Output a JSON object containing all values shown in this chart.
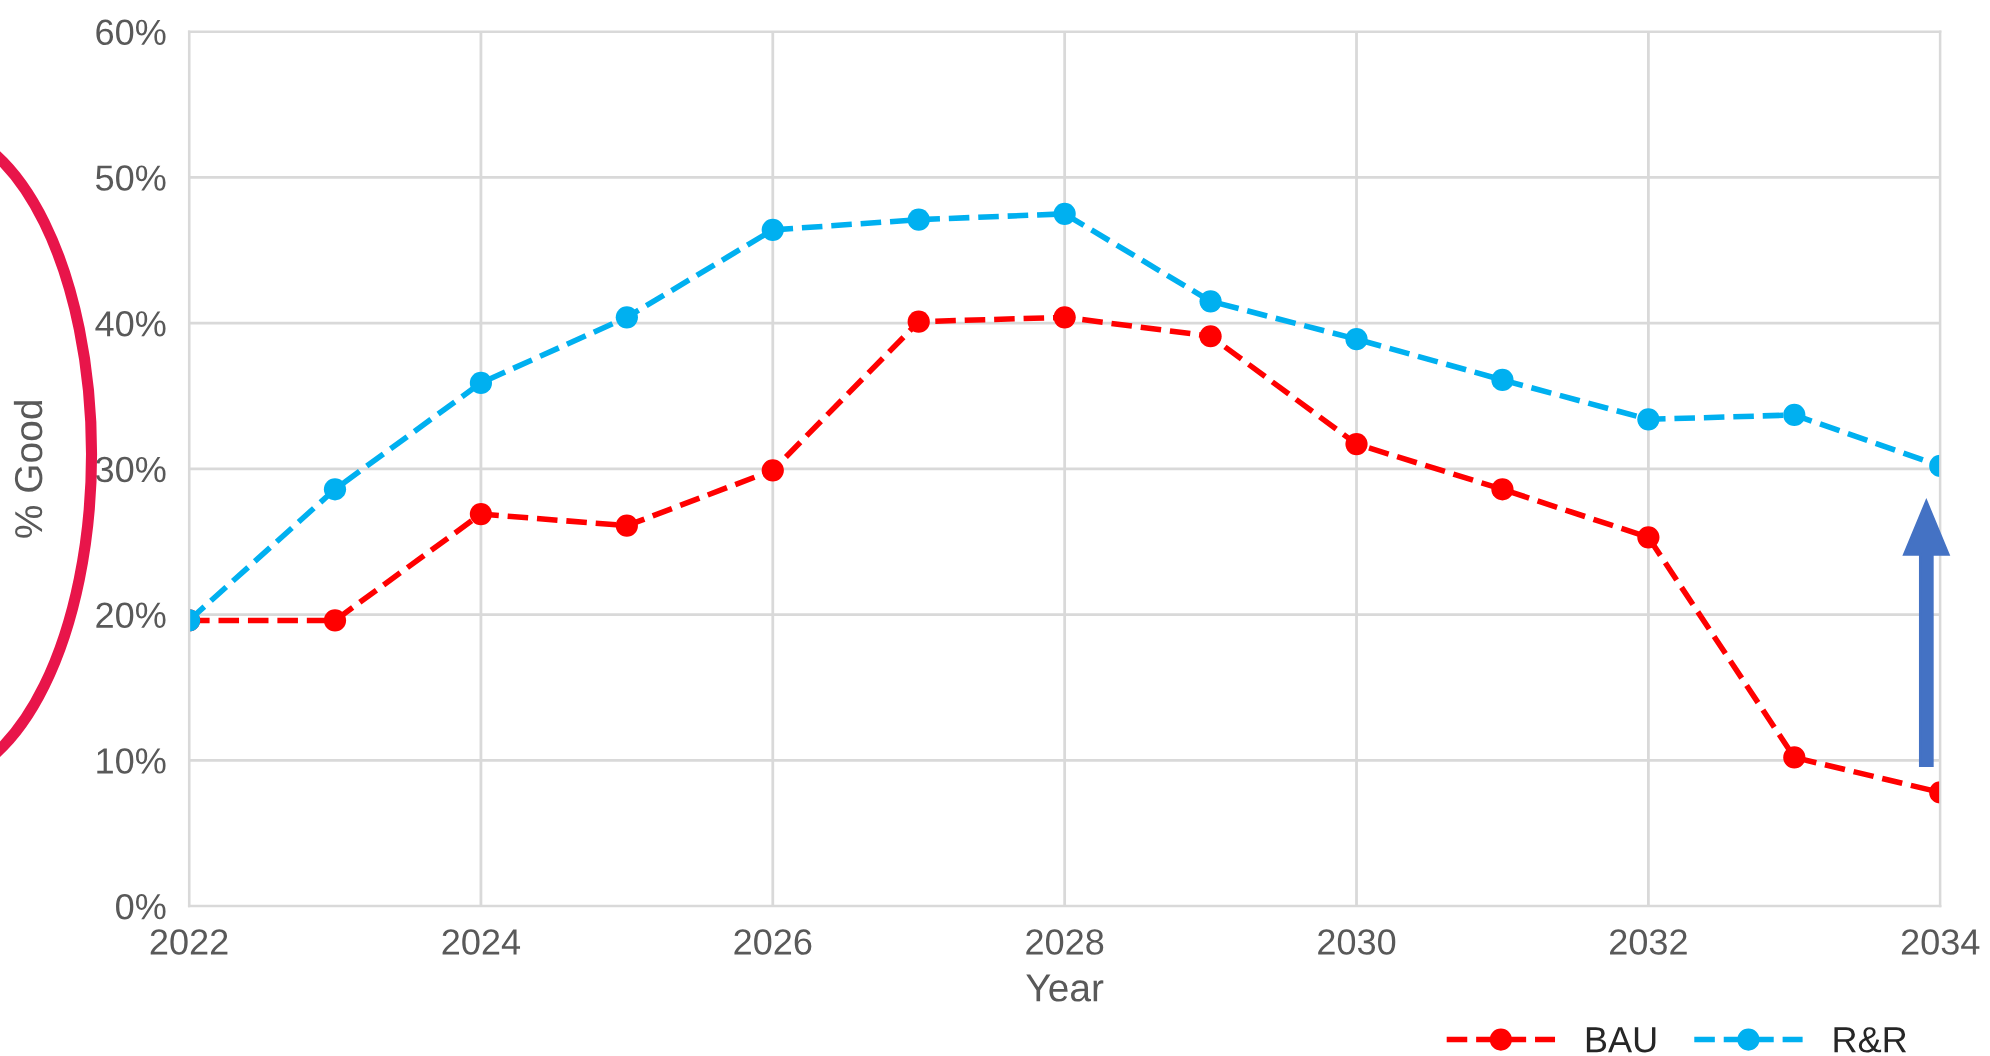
{
  "chart_data": {
    "type": "line",
    "xlabel": "Year",
    "ylabel": "% Good",
    "x": [
      2022,
      2023,
      2024,
      2025,
      2026,
      2027,
      2028,
      2029,
      2030,
      2031,
      2032,
      2033,
      2034
    ],
    "series": [
      {
        "name": "BAU",
        "color": "#ff0000",
        "values": [
          19.6,
          19.6,
          26.9,
          26.1,
          29.9,
          40.1,
          40.4,
          39.1,
          31.7,
          28.6,
          25.3,
          10.2,
          7.8
        ]
      },
      {
        "name": "R&R",
        "color": "#00b0f0",
        "values": [
          19.6,
          28.6,
          35.9,
          40.4,
          46.4,
          47.1,
          47.5,
          41.5,
          38.9,
          36.1,
          33.4,
          33.7,
          30.2
        ]
      }
    ],
    "xlim": [
      2022,
      2034
    ],
    "xticks": [
      2022,
      2024,
      2026,
      2028,
      2030,
      2032,
      2034
    ],
    "ylim": [
      0,
      60
    ],
    "yticks": [
      {
        "value": 0,
        "label": "0%"
      },
      {
        "value": 10,
        "label": "10%"
      },
      {
        "value": 20,
        "label": "20%"
      },
      {
        "value": 30,
        "label": "30%"
      },
      {
        "value": 40,
        "label": "40%"
      },
      {
        "value": 50,
        "label": "50%"
      },
      {
        "value": 60,
        "label": "60%"
      }
    ],
    "grid": true,
    "legend": "bottom right",
    "marker": "circle",
    "line_style": "dashed"
  }
}
